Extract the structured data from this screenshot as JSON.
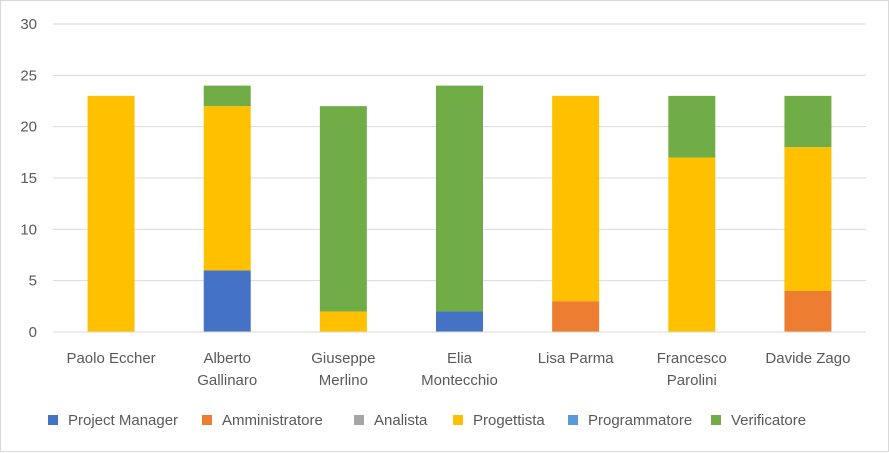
{
  "chart_data": {
    "type": "bar",
    "stacked": true,
    "categories": [
      [
        "Paolo Eccher"
      ],
      [
        "Alberto",
        "Gallinaro"
      ],
      [
        "Giuseppe",
        "Merlino"
      ],
      [
        "Elia",
        "Montecchio"
      ],
      [
        "Lisa Parma"
      ],
      [
        "Francesco",
        "Parolini"
      ],
      [
        "Davide Zago"
      ]
    ],
    "series": [
      {
        "name": "Project Manager",
        "color": "#4472c4",
        "values": [
          0,
          6,
          0,
          2,
          0,
          0,
          0
        ]
      },
      {
        "name": "Amministratore",
        "color": "#ed7d31",
        "values": [
          0,
          0,
          0,
          0,
          3,
          0,
          4
        ]
      },
      {
        "name": "Analista",
        "color": "#a5a5a5",
        "values": [
          0,
          0,
          0,
          0,
          0,
          0,
          0
        ]
      },
      {
        "name": "Progettista",
        "color": "#ffc000",
        "values": [
          23,
          16,
          2,
          0,
          20,
          17,
          14
        ]
      },
      {
        "name": "Programmatore",
        "color": "#5b9bd5",
        "values": [
          0,
          0,
          0,
          0,
          0,
          0,
          0
        ]
      },
      {
        "name": "Verificatore",
        "color": "#70ad47",
        "values": [
          0,
          2,
          20,
          22,
          0,
          6,
          5
        ]
      }
    ],
    "yticks": [
      "0",
      "5",
      "10",
      "15",
      "20",
      "25",
      "30"
    ],
    "ylim": [
      0,
      30
    ],
    "grid": true,
    "legend_position": "bottom"
  }
}
